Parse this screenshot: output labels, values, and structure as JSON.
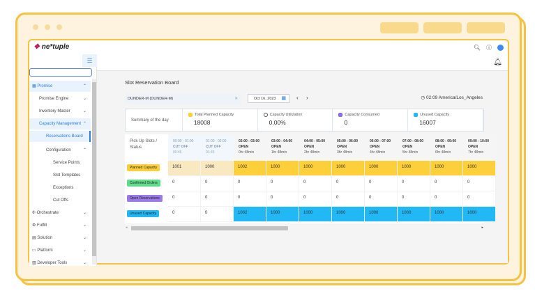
{
  "app": {
    "logo": "ne*tuple",
    "brand_color": "#c2185b",
    "accent": "#2d7de0"
  },
  "header": {
    "icons": [
      "search-icon",
      "help-icon",
      "avatar"
    ]
  },
  "sidebar": {
    "items": [
      {
        "label": "Promise",
        "level": 0,
        "active": true,
        "chevron": "up",
        "icon": "calendar-icon"
      },
      {
        "label": "Promise Engine",
        "level": 1,
        "chevron": "down"
      },
      {
        "label": "Inventory Master",
        "level": 1,
        "chevron": "down"
      },
      {
        "label": "Capacity Management",
        "level": 1,
        "active": true,
        "chevron": "up"
      },
      {
        "label": "Reservations Board",
        "level": 2,
        "active": true,
        "selected": true
      },
      {
        "label": "Configuration",
        "level": 2,
        "chevron": "up"
      },
      {
        "label": "Service Points",
        "level": 3
      },
      {
        "label": "Slot Templates",
        "level": 3
      },
      {
        "label": "Exceptions",
        "level": 3
      },
      {
        "label": "Cut Offs",
        "level": 3
      },
      {
        "label": "Orchestrate",
        "level": 0,
        "chevron": "down",
        "icon": "orchestrate-icon"
      },
      {
        "label": "Fulfill",
        "level": 0,
        "chevron": "down",
        "icon": "gear-icon"
      },
      {
        "label": "Solution",
        "level": 0,
        "chevron": "down",
        "icon": "solution-icon"
      },
      {
        "label": "Platform",
        "level": 0,
        "chevron": "down",
        "icon": "monitor-icon"
      },
      {
        "label": "Developer Tools",
        "level": 0,
        "chevron": "down",
        "icon": "tools-icon"
      }
    ]
  },
  "main": {
    "title": "Slot Reservation Board",
    "location": "DUNDER-M (DUNDER-M)",
    "date": "Oct 16, 2023",
    "time": "02:09",
    "timezone": "America/Los_Angeles",
    "summary": {
      "label": "Summary of the day",
      "cards": [
        {
          "label": "Total Planned Capacity",
          "value": "18008",
          "color": "#fdd03b"
        },
        {
          "label": "Capacity Utilization",
          "value": "0.00%",
          "color": "#555555"
        },
        {
          "label": "Capacity Consumed",
          "value": "0",
          "color": "#8b6fe0"
        },
        {
          "label": "Unused Capacity",
          "value": "16007",
          "color": "#22b8f5"
        }
      ]
    },
    "table": {
      "corner": "Pick Up Slots / Status",
      "slots": [
        {
          "time": "00:00 - 01:00",
          "status": "CUT OFF",
          "sub": "00:45"
        },
        {
          "time": "01:00 - 02:00",
          "status": "CUT OFF",
          "sub": "01:45"
        },
        {
          "time": "02:00 - 03:00",
          "status": "OPEN",
          "sub": "0hr 48min"
        },
        {
          "time": "03:00 - 04:00",
          "status": "OPEN",
          "sub": "1hr 48min"
        },
        {
          "time": "04:00 - 05:00",
          "status": "OPEN",
          "sub": "2hr 48min"
        },
        {
          "time": "05:00 - 06:00",
          "status": "OPEN",
          "sub": "3hr 48min"
        },
        {
          "time": "06:00 - 07:00",
          "status": "OPEN",
          "sub": "4hr 48min"
        },
        {
          "time": "07:00 - 08:00",
          "status": "OPEN",
          "sub": "5hr 48min"
        },
        {
          "time": "08:00 - 09:00",
          "status": "OPEN",
          "sub": "6hr 48min"
        },
        {
          "time": "09:00 - 10:00",
          "status": "OPEN",
          "sub": "7hr 48min"
        }
      ],
      "rows": [
        {
          "label": "Planned Capacity",
          "color": "#fdd03b",
          "values": [
            "1001",
            "1000",
            "1002",
            "1000",
            "1000",
            "1000",
            "1000",
            "1000",
            "1000",
            "1000"
          ]
        },
        {
          "label": "Confirmed Orders",
          "color": "#5fdc8a",
          "values": [
            "0",
            "0",
            "0",
            "0",
            "0",
            "0",
            "0",
            "0",
            "0",
            "0"
          ]
        },
        {
          "label": "Open Reservations",
          "color": "#9b7ae6",
          "values": [
            "0",
            "0",
            "0",
            "0",
            "0",
            "0",
            "0",
            "0",
            "0",
            "0"
          ]
        },
        {
          "label": "Unused Capacity",
          "color": "#22b8f5",
          "values": [
            "0",
            "0",
            "1002",
            "1000",
            "1000",
            "1000",
            "1000",
            "1000",
            "1000",
            "1000"
          ]
        }
      ]
    }
  }
}
